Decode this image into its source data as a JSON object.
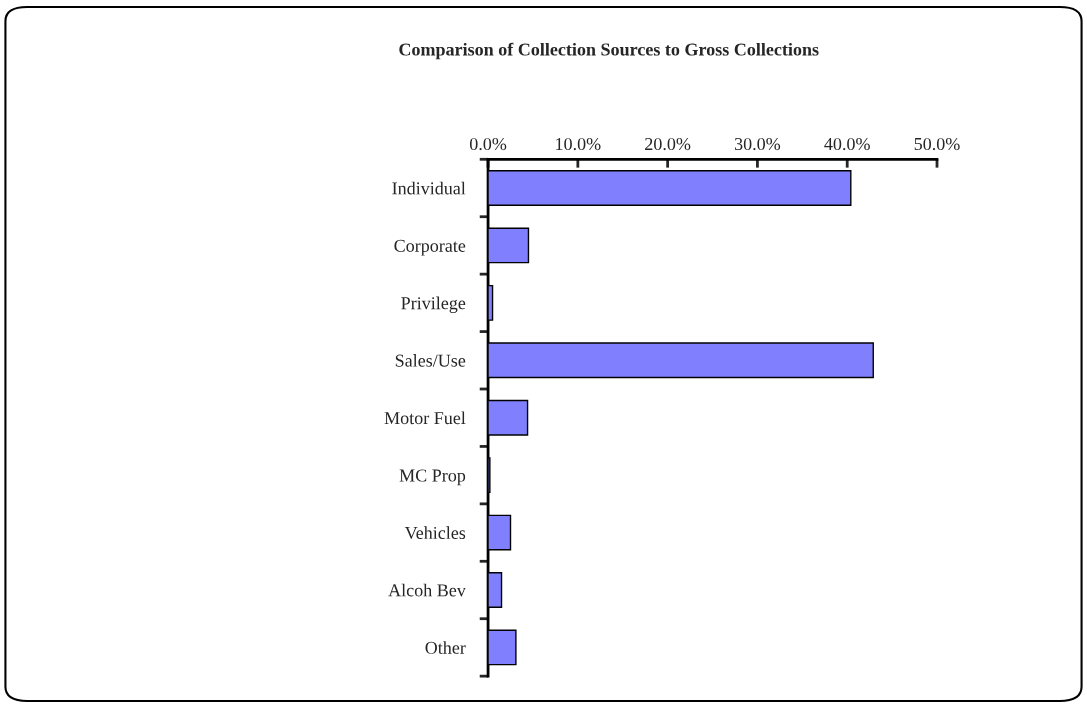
{
  "chart_data": {
    "type": "bar",
    "orientation": "horizontal",
    "title": "Comparison of Collection Sources to Gross Collections",
    "categories": [
      "Individual",
      "Corporate",
      "Privilege",
      "Sales/Use",
      "Motor Fuel",
      "MC Prop",
      "Vehicles",
      "Alcoh Bev",
      "Other"
    ],
    "values": [
      40.4,
      4.5,
      0.5,
      42.9,
      4.4,
      0.2,
      2.5,
      1.5,
      3.1
    ],
    "color": "#8080ff",
    "xlim": [
      0,
      50
    ],
    "xticks": [
      {
        "value": 0,
        "label": "0.0%"
      },
      {
        "value": 10,
        "label": "10.0%"
      },
      {
        "value": 20,
        "label": "20.0%"
      },
      {
        "value": 30,
        "label": "30.0%"
      },
      {
        "value": 40,
        "label": "40.0%"
      },
      {
        "value": 50,
        "label": "50.0%"
      }
    ],
    "grid": false,
    "legend": false
  }
}
